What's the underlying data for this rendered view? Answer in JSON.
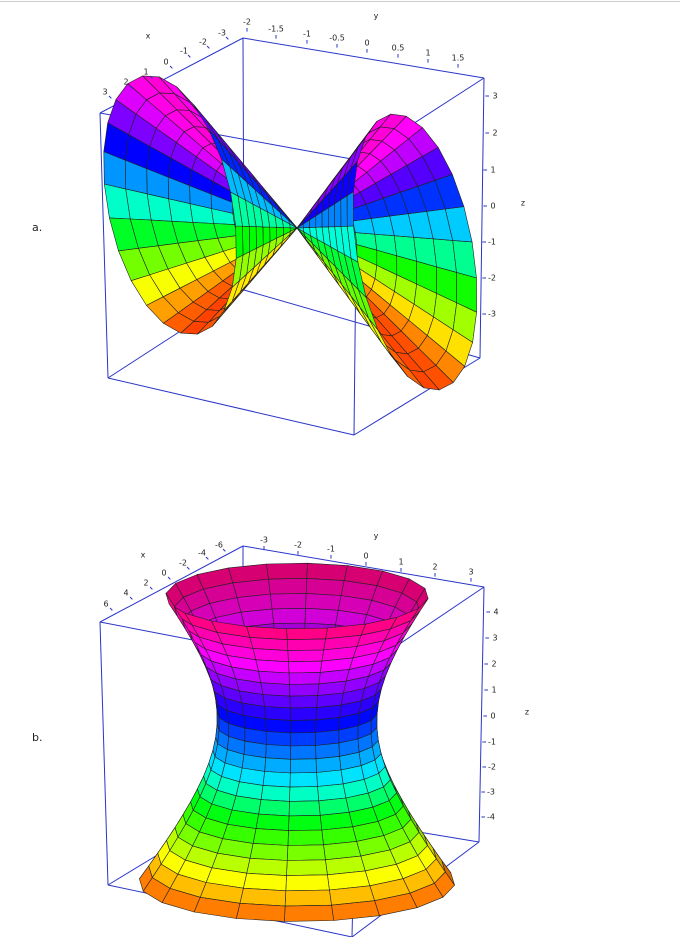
{
  "panels": [
    {
      "label": "a.",
      "x_axis": {
        "label": "x",
        "ticks": [
          "3",
          "2",
          "1",
          "0",
          "-1",
          "-2",
          "-3"
        ]
      },
      "y_axis": {
        "label": "y",
        "ticks": [
          "-2",
          "-1.5",
          "-1",
          "-0.5",
          "0",
          "0.5",
          "1",
          "1.5"
        ]
      },
      "z_axis": {
        "label": "z",
        "ticks": [
          "3",
          "2",
          "1",
          "0",
          "-1",
          "-2",
          "-3"
        ]
      }
    },
    {
      "label": "b.",
      "x_axis": {
        "label": "x",
        "ticks": [
          "6",
          "4",
          "2",
          "0",
          "-2",
          "-4",
          "-6"
        ]
      },
      "y_axis": {
        "label": "y",
        "ticks": [
          "-3",
          "-2",
          "-1",
          "0",
          "1",
          "2",
          "3"
        ]
      },
      "z_axis": {
        "label": "z",
        "ticks": [
          "4",
          "3",
          "2",
          "1",
          "0",
          "-1",
          "-2",
          "-3",
          "-4"
        ]
      }
    }
  ]
}
